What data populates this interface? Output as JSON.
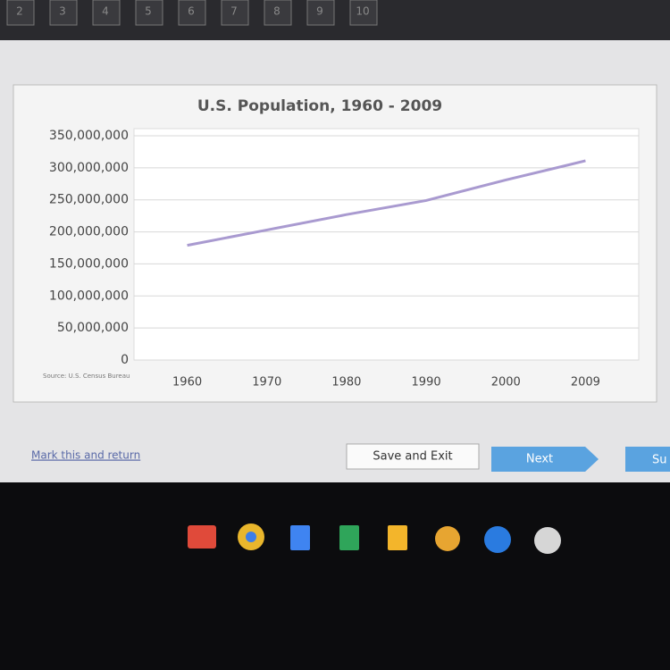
{
  "nav": {
    "items": [
      "2",
      "3",
      "4",
      "5",
      "6",
      "7",
      "8",
      "9",
      "10"
    ]
  },
  "chart_data": {
    "type": "line",
    "title": "U.S. Population, 1960 - 2009",
    "source": "Source: U.S. Census Bureau",
    "categories": [
      "1960",
      "1970",
      "1980",
      "1990",
      "2000",
      "2009"
    ],
    "series": [
      {
        "name": "U.S. Population",
        "color": "#a99ad0",
        "values": [
          179000000,
          203000000,
          227000000,
          249000000,
          281000000,
          311000000
        ]
      }
    ],
    "ylim": [
      0,
      350000000
    ],
    "yticks": [
      0,
      {
        "value": 50000000,
        "label": "50,000,000"
      },
      {
        "value": 100000000,
        "label": "100,000,000"
      },
      {
        "value": 150000000,
        "label": "150,000,000"
      },
      {
        "value": 200000000,
        "label": "200,000,000"
      },
      {
        "value": 250000000,
        "label": "250,000,000"
      },
      {
        "value": 300000000,
        "label": "300,000,000"
      },
      {
        "value": 350000000,
        "label": "350,000,000"
      }
    ],
    "grid": true
  },
  "footer": {
    "mark_link": "Mark this and return",
    "save_button": "Save and Exit",
    "next_button": "Next",
    "submit_button": "Su"
  }
}
